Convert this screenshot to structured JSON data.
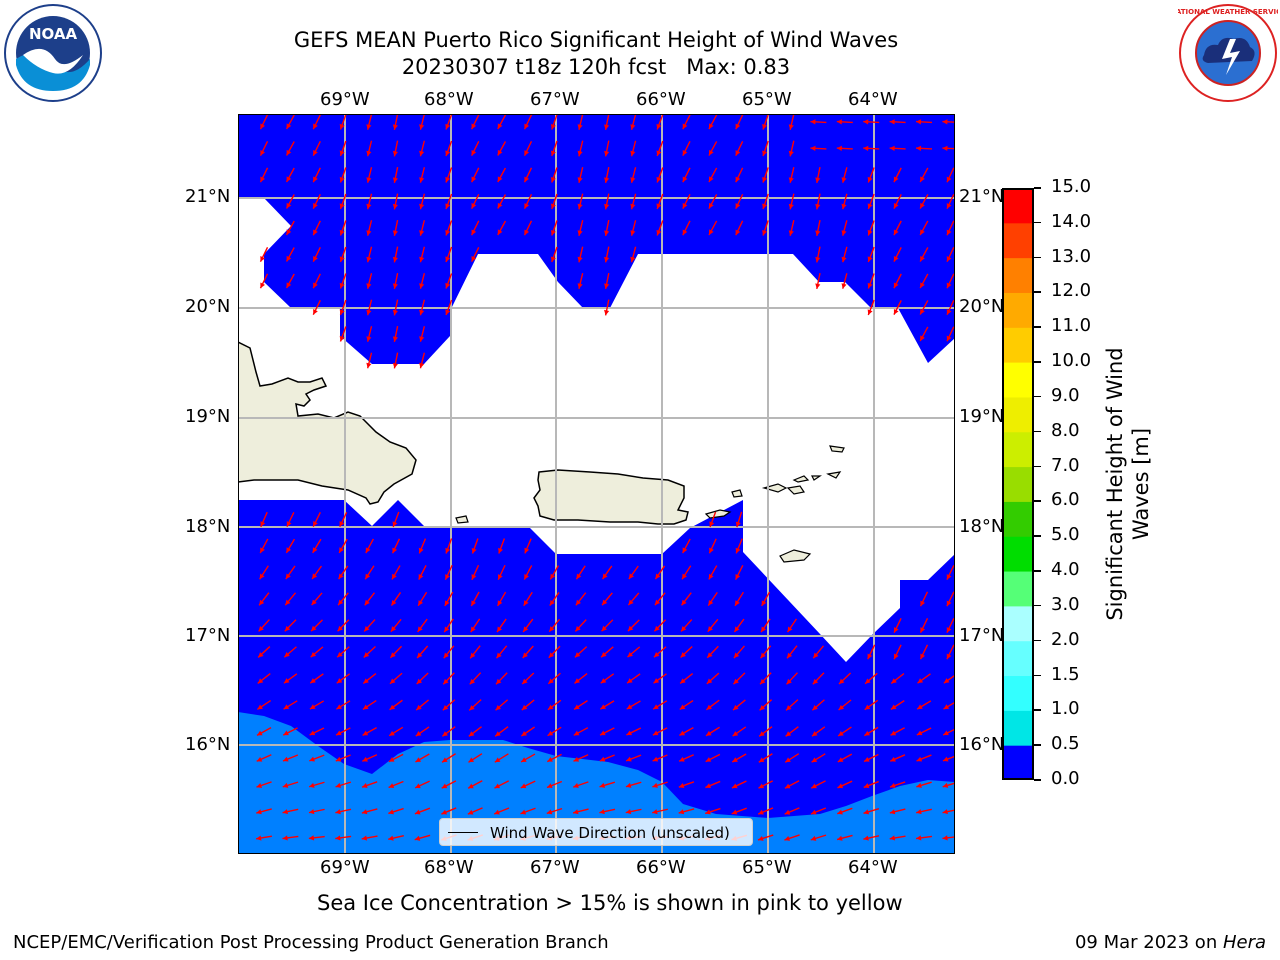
{
  "title": {
    "line1": "GEFS MEAN Puerto Rico Significant Height of Wind Waves",
    "line2": "20230307 t18z 120h fcst   Max: 0.83"
  },
  "logos": {
    "left": "NOAA",
    "right": "NATIONAL WEATHER SERVICE"
  },
  "map": {
    "lon_ticks": [
      "69°W",
      "68°W",
      "67°W",
      "66°W",
      "65°W",
      "64°W"
    ],
    "lat_ticks": [
      "21°N",
      "20°N",
      "19°N",
      "18°N",
      "17°N",
      "16°N"
    ],
    "ocean_color": "#0000ff",
    "light_band_color": "#0080ff",
    "land_color": "#eeeedc",
    "arrow_color": "#ff0000",
    "grid": true
  },
  "legend": {
    "label": "Wind Wave Direction (unscaled)"
  },
  "colorbar": {
    "label": "Significant Height of Wind Waves [m]",
    "ticks": [
      "0.0",
      "0.5",
      "1.0",
      "1.5",
      "2.0",
      "3.0",
      "4.0",
      "5.0",
      "6.0",
      "7.0",
      "8.0",
      "9.0",
      "10.0",
      "11.0",
      "12.0",
      "13.0",
      "14.0",
      "15.0"
    ],
    "colors": [
      "#0000ff",
      "#0080ff",
      "#00e6e6",
      "#33ffff",
      "#66ffff",
      "#aaffff",
      "#55ff77",
      "#00dd00",
      "#33cc00",
      "#99dd00",
      "#ccee00",
      "#eeee00",
      "#ffff00",
      "#ffcc00",
      "#ffaa00",
      "#ff8000",
      "#ff4000",
      "#ff0000"
    ]
  },
  "note": "Sea Ice Concentration > 15% is shown in pink to yellow",
  "footer": {
    "left": "NCEP/EMC/Verification Post Processing Product Generation Branch",
    "right_date": "09 Mar 2023 on ",
    "right_host": "Hera"
  }
}
